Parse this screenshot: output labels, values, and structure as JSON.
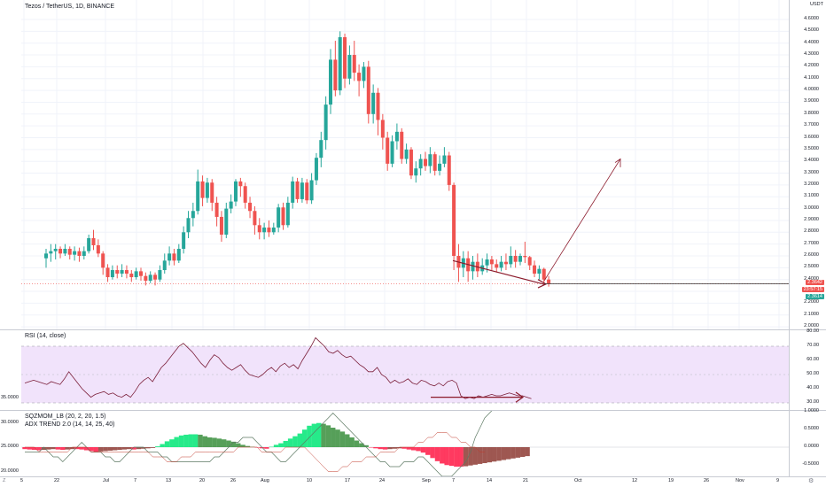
{
  "chart": {
    "symbol_title": "Tezos / TetherUS, 1D, BINANCE",
    "currency": "USDT",
    "colors": {
      "up": "#26a69a",
      "down": "#ef5350",
      "rsi": "#7b1f3a",
      "rsi_band": "#f1e3fb",
      "draw": "#8b1a2b",
      "mom_up": "#00e676",
      "mom_down": "#ff1744"
    }
  },
  "price_axis": {
    "ticks": [
      "4.6000",
      "4.5000",
      "4.4000",
      "4.3000",
      "4.2000",
      "4.1000",
      "4.0000",
      "3.9000",
      "3.8000",
      "3.7000",
      "3.6000",
      "3.5000",
      "3.4000",
      "3.3000",
      "3.2000",
      "3.1000",
      "3.0000",
      "2.9000",
      "2.8000",
      "2.7000",
      "2.6000",
      "2.5000",
      "2.4000",
      "2.3000",
      "2.2000",
      "2.1000",
      "2.0000"
    ],
    "last_price": "2.3642",
    "countdown": "23:57:15",
    "other_price": "2.3614"
  },
  "rsi": {
    "legend": "RSI (14, close)",
    "ticks": [
      "80.00",
      "70.00",
      "60.00",
      "50.00",
      "40.00",
      "30.00"
    ]
  },
  "momentum": {
    "legend_1": "SQZMOM_LB (20, 2, 20, 1.5)",
    "legend_2": "ADX TREND 2.0 (14, 14, 25, 40)",
    "left_ticks": [
      "35.0000",
      "30.0000",
      "25.0000",
      "20.0000"
    ],
    "right_ticks": [
      "1.0000",
      "0.5000",
      "0.0000",
      "-0.5000"
    ]
  },
  "time_axis": {
    "labels": [
      "5",
      "22",
      "Jul",
      "7",
      "13",
      "20",
      "26",
      "Aug",
      "10",
      "17",
      "24",
      "Sep",
      "7",
      "14",
      "21",
      "Oct",
      "12",
      "19",
      "26",
      "Nov",
      "9"
    ],
    "left_button": "Z",
    "right_button": "⚙"
  }
}
